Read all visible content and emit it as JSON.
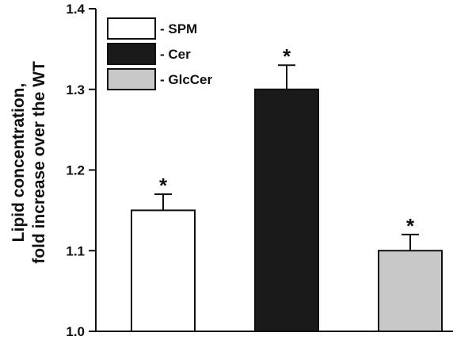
{
  "chart_data": {
    "type": "bar",
    "title": "",
    "xlabel": "",
    "ylabel_lines": [
      "Lipid concentration,",
      "fold increase over the WT"
    ],
    "ylim": [
      1.0,
      1.4
    ],
    "yticks": [
      "1.0",
      "1.1",
      "1.2",
      "1.3",
      "1.4"
    ],
    "grid": false,
    "legend_position": "top-left",
    "series": [
      {
        "name": "- SPM",
        "value": 1.15,
        "error": 0.02,
        "color": "#ffffff",
        "annotation": "*"
      },
      {
        "name": "- Cer",
        "value": 1.3,
        "error": 0.03,
        "color": "#1a1a1a",
        "annotation": "*"
      },
      {
        "name": "- GlcCer",
        "value": 1.1,
        "error": 0.02,
        "color": "#c8c8c8",
        "annotation": "*"
      }
    ]
  }
}
